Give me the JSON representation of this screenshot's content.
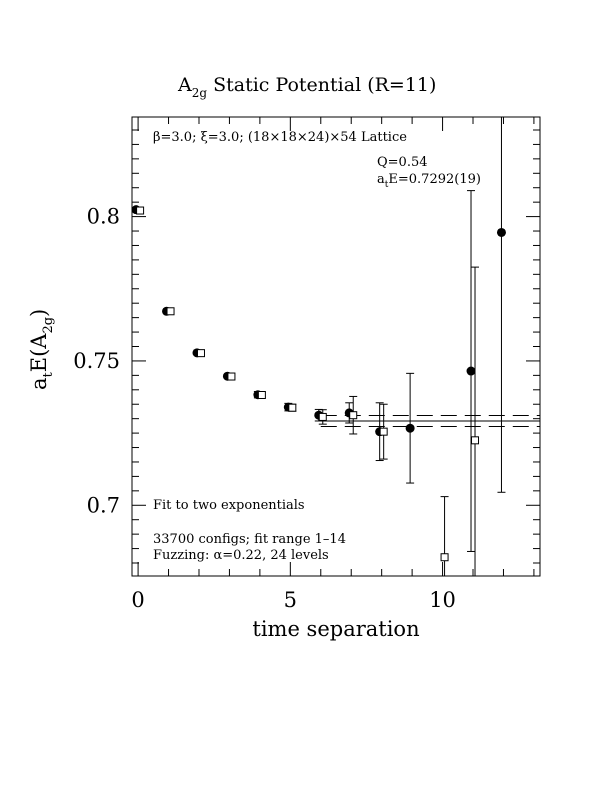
{
  "chart_data": {
    "type": "scatter",
    "title": "A",
    "title_sub": "2g",
    "title_rest": " Static Potential (R=11)",
    "xlabel": "time separation",
    "ylabel_main": "a",
    "ylabel_sub_t": "t",
    "ylabel_mid": "E(A",
    "ylabel_sub": "2g",
    "ylabel_end": ")",
    "xlim": [
      -0.2,
      13.2
    ],
    "ylim": [
      0.6755,
      0.8345
    ],
    "x_ticks": [
      0,
      5,
      10
    ],
    "y_ticks": [
      0.7,
      0.75,
      0.8
    ],
    "x_tick_labels": [
      "0",
      "5",
      "10"
    ],
    "y_tick_labels": [
      "0.7",
      "0.75",
      "0.8"
    ],
    "grid": false,
    "legend": "none",
    "annotations": {
      "lattice": "β=3.0; ξ=3.0; (18×18×24)×54 Lattice",
      "q": "Q=0.54",
      "energy_pre": "a",
      "energy_sub": "t",
      "energy_post": "E=0.7292(19)",
      "fit": "Fit to two exponentials",
      "configs": "33700 configs; fit range 1–14",
      "fuzzing": "Fuzzing: α=0.22, 24 levels"
    },
    "fit_band": {
      "center": 0.7292,
      "error": 0.0019
    },
    "series": [
      {
        "marker": "filled-circle",
        "x": [
          0,
          1,
          2,
          3,
          4,
          5,
          6,
          7,
          8,
          9,
          11,
          12
        ],
        "y": [
          0.8024,
          0.7672,
          0.7528,
          0.7447,
          0.7383,
          0.734,
          0.7312,
          0.732,
          0.7255,
          0.7267,
          0.7465,
          0.7945
        ],
        "yerr": [
          0.0005,
          0.0008,
          0.0009,
          0.0009,
          0.0011,
          0.0013,
          0.002,
          0.0035,
          0.01,
          0.019,
          0.0625,
          0.09
        ]
      },
      {
        "marker": "open-square",
        "x": [
          0,
          1,
          2,
          3,
          4,
          5,
          6,
          7,
          8,
          10,
          11
        ],
        "y": [
          0.8021,
          0.7672,
          0.7527,
          0.7446,
          0.7382,
          0.7338,
          0.7306,
          0.7312,
          0.7255,
          0.682,
          0.7225
        ],
        "yerr": [
          0.0005,
          0.0007,
          0.0008,
          0.0009,
          0.001,
          0.0012,
          0.0025,
          0.0065,
          0.0095,
          0.021,
          0.06
        ]
      }
    ]
  }
}
